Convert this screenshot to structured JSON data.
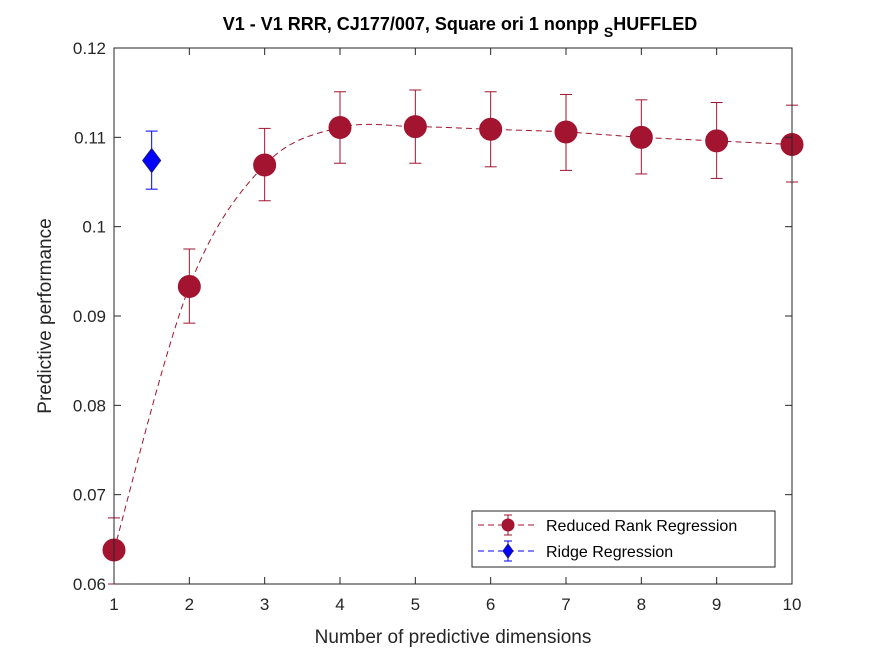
{
  "chart_data": {
    "type": "scatter",
    "title": "V1 - V1 RRR, CJ177/007, Square ori 1 nonpp ",
    "title_sub": "S",
    "title_tail": "HUFFLED",
    "xlabel": "Number of predictive dimensions",
    "ylabel": "Predictive performance",
    "xlim": [
      1,
      10
    ],
    "ylim": [
      0.06,
      0.12
    ],
    "xticks": [
      1,
      2,
      3,
      4,
      5,
      6,
      7,
      8,
      9,
      10
    ],
    "xtick_labels": [
      "1",
      "2",
      "3",
      "4",
      "5",
      "6",
      "7",
      "8",
      "9",
      "10"
    ],
    "yticks": [
      0.06,
      0.07,
      0.08,
      0.09,
      0.1,
      0.11,
      0.12
    ],
    "ytick_labels": [
      "0.06",
      "0.07",
      "0.08",
      "0.09",
      "0.1",
      "0.11",
      "0.12"
    ],
    "grid": false,
    "legend_position": "bottom-right",
    "series": [
      {
        "name": "Reduced Rank Regression",
        "marker": "circle",
        "line_style": "dashed",
        "smooth": true,
        "color": "#a2142f",
        "x": [
          1,
          2,
          3,
          4,
          5,
          6,
          7,
          8,
          9,
          10
        ],
        "y": [
          0.0638,
          0.0933,
          0.1069,
          0.1111,
          0.1112,
          0.1109,
          0.1106,
          0.11,
          0.1096,
          0.1092
        ],
        "err_low": [
          0.06,
          0.0892,
          0.1029,
          0.1071,
          0.1071,
          0.1067,
          0.1063,
          0.1059,
          0.1054,
          0.105
        ],
        "err_high": [
          0.0674,
          0.0975,
          0.111,
          0.1151,
          0.1153,
          0.1151,
          0.1148,
          0.1142,
          0.1139,
          0.1136
        ]
      },
      {
        "name": "Ridge Regression",
        "marker": "diamond",
        "line_style": "dashed",
        "color": "#0000ff",
        "edge_color": "#1a1a80",
        "x": [
          1.5
        ],
        "y": [
          0.1074
        ],
        "err_low": [
          0.1042
        ],
        "err_high": [
          0.1107
        ]
      }
    ]
  }
}
